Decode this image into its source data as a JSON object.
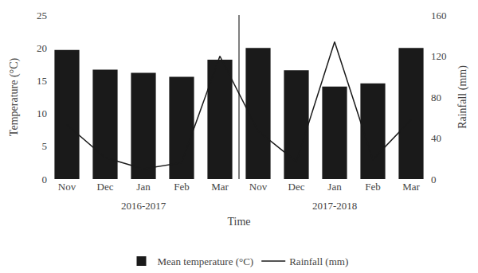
{
  "chart_data": {
    "type": "bar",
    "categories": [
      "Nov",
      "Dec",
      "Jan",
      "Feb",
      "Mar",
      "Nov",
      "Dec",
      "Jan",
      "Feb",
      "Mar"
    ],
    "series": [
      {
        "name": "Mean temperature (°C)",
        "type": "bar",
        "color": "#1a1a1a",
        "values": [
          19.7,
          16.7,
          16.2,
          15.6,
          18.2,
          20.0,
          16.6,
          14.1,
          14.6,
          20.0
        ]
      },
      {
        "name": "Rainfall (mm)",
        "type": "line",
        "color": "#1a1a1a",
        "axis": "y2",
        "values": [
          53,
          21,
          10,
          16,
          120,
          47,
          17,
          134,
          19,
          58
        ]
      }
    ],
    "x_label": "Time",
    "y_label": "Temperature (°C)",
    "y2_label": "Rainfall (mm)",
    "ylim": [
      0,
      25
    ],
    "yticks": [
      0,
      5,
      10,
      15,
      20,
      25
    ],
    "y2lim": [
      0,
      160
    ],
    "y2ticks": [
      0,
      40,
      80,
      120,
      160
    ],
    "annotations": [
      "2016-2017",
      "2017-2018"
    ],
    "legend": "bottom",
    "grid": false
  }
}
